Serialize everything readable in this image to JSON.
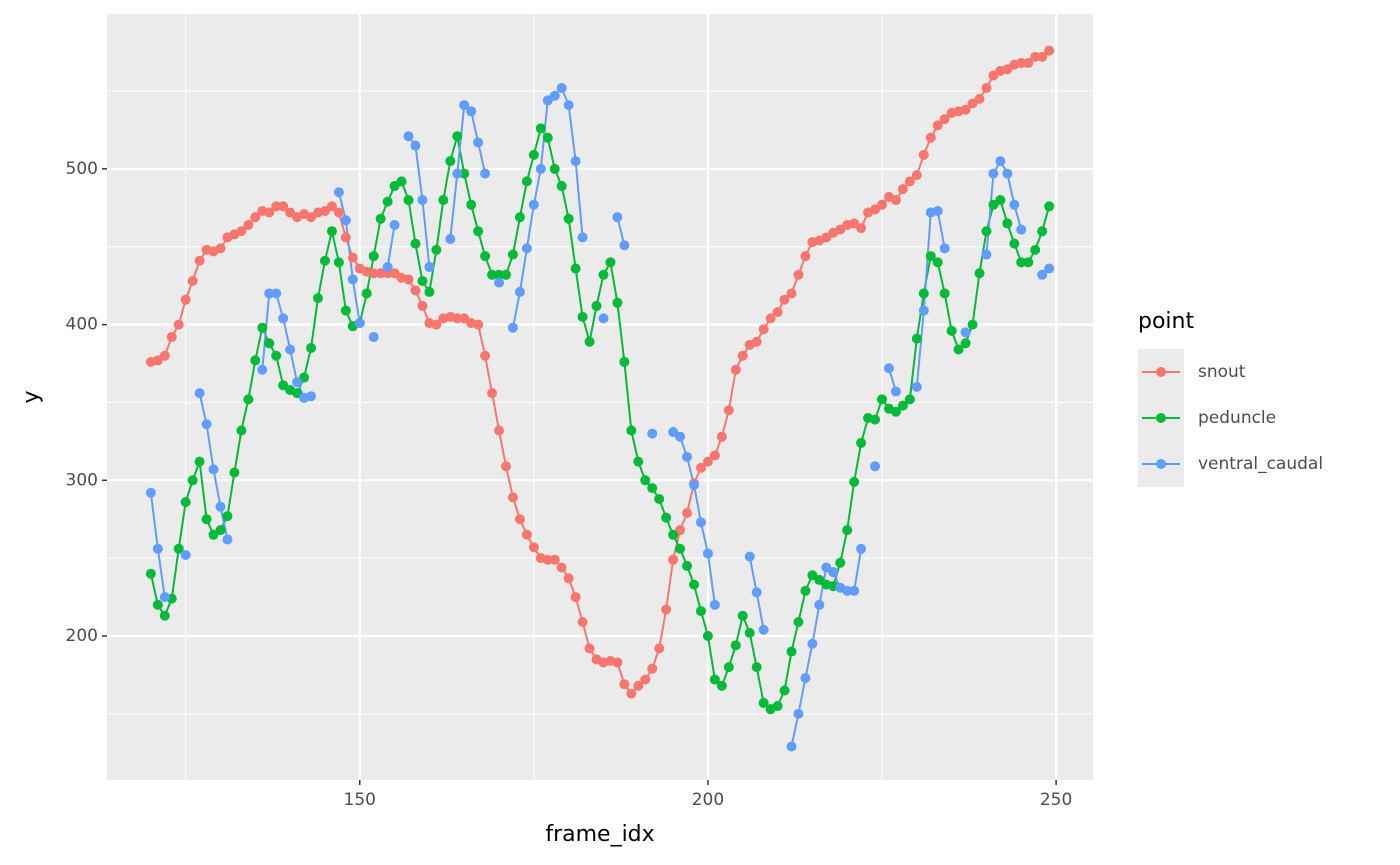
{
  "chart_data": {
    "type": "line",
    "x_label": "frame_idx",
    "y_label": "y",
    "legend_title": "point",
    "x": [
      120,
      121,
      122,
      123,
      124,
      125,
      126,
      127,
      128,
      129,
      130,
      131,
      132,
      133,
      134,
      135,
      136,
      137,
      138,
      139,
      140,
      141,
      142,
      143,
      144,
      145,
      146,
      147,
      148,
      149,
      150,
      151,
      152,
      153,
      154,
      155,
      156,
      157,
      158,
      159,
      160,
      161,
      162,
      163,
      164,
      165,
      166,
      167,
      168,
      169,
      170,
      171,
      172,
      173,
      174,
      175,
      176,
      177,
      178,
      179,
      180,
      181,
      182,
      183,
      184,
      185,
      186,
      187,
      188,
      189,
      190,
      191,
      192,
      193,
      194,
      195,
      196,
      197,
      198,
      199,
      200,
      201,
      202,
      203,
      204,
      205,
      206,
      207,
      208,
      209,
      210,
      211,
      212,
      213,
      214,
      215,
      216,
      217,
      218,
      219,
      220,
      221,
      222,
      223,
      224,
      225,
      226,
      227,
      228,
      229,
      230,
      231,
      232,
      233,
      234,
      235,
      236,
      237,
      238,
      239,
      240,
      241,
      242,
      243,
      244,
      245,
      246,
      247,
      248,
      249
    ],
    "series": [
      {
        "name": "snout",
        "color": "#F8766D",
        "values": [
          376,
          377,
          380,
          392,
          400,
          416,
          428,
          441,
          448,
          447,
          449,
          456,
          458,
          460,
          464,
          469,
          473,
          472,
          476,
          476,
          472,
          469,
          471,
          469,
          472,
          473,
          476,
          472,
          456,
          443,
          436,
          434,
          433,
          433,
          433,
          433,
          430,
          429,
          422,
          412,
          401,
          400,
          404,
          405,
          404,
          404,
          401,
          400,
          380,
          356,
          332,
          309,
          289,
          275,
          265,
          257,
          250,
          249,
          249,
          244,
          237,
          225,
          209,
          192,
          185,
          183,
          184,
          183,
          169,
          163,
          168,
          172,
          179,
          192,
          217,
          249,
          268,
          279,
          298,
          308,
          312,
          316,
          328,
          345,
          371,
          380,
          387,
          389,
          397,
          404,
          408,
          416,
          420,
          432,
          444,
          453,
          454,
          456,
          459,
          461,
          464,
          465,
          462,
          472,
          474,
          477,
          482,
          480,
          487,
          492,
          496,
          509,
          520,
          528,
          532,
          536,
          537,
          538,
          542,
          545,
          552,
          560,
          563,
          564,
          567,
          568,
          568,
          572,
          572,
          576
        ]
      },
      {
        "name": "peduncle",
        "color": "#00BA38",
        "values": [
          240,
          220,
          213,
          224,
          256,
          286,
          300,
          312,
          275,
          265,
          268,
          277,
          305,
          332,
          352,
          377,
          398,
          388,
          380,
          361,
          358,
          356,
          366,
          385,
          417,
          441,
          460,
          440,
          409,
          399,
          401,
          420,
          444,
          468,
          479,
          489,
          492,
          480,
          452,
          428,
          421,
          448,
          480,
          505,
          521,
          497,
          477,
          460,
          444,
          432,
          432,
          432,
          445,
          469,
          492,
          509,
          526,
          520,
          500,
          489,
          468,
          436,
          405,
          389,
          412,
          432,
          440,
          414,
          376,
          332,
          312,
          300,
          295,
          288,
          276,
          265,
          256,
          245,
          233,
          216,
          200,
          172,
          168,
          180,
          194,
          213,
          202,
          180,
          157,
          153,
          155,
          165,
          190,
          209,
          229,
          239,
          236,
          233,
          232,
          247,
          268,
          299,
          324,
          340,
          339,
          352,
          346,
          344,
          348,
          352,
          391,
          420,
          444,
          440,
          420,
          396,
          384,
          388,
          400,
          433,
          460,
          477,
          480,
          465,
          452,
          440,
          440,
          448,
          460,
          476
        ]
      },
      {
        "name": "ventral_caudal",
        "color": "#619CFF",
        "values": [
          292,
          256,
          225,
          null,
          null,
          252,
          null,
          356,
          336,
          307,
          283,
          262,
          null,
          null,
          null,
          null,
          371,
          420,
          420,
          404,
          384,
          363,
          353,
          354,
          null,
          null,
          null,
          485,
          467,
          429,
          401,
          null,
          392,
          null,
          437,
          464,
          null,
          521,
          515,
          480,
          437,
          null,
          null,
          455,
          497,
          541,
          537,
          517,
          497,
          null,
          427,
          null,
          398,
          421,
          449,
          477,
          500,
          544,
          547,
          552,
          541,
          505,
          456,
          null,
          null,
          404,
          null,
          469,
          451,
          null,
          null,
          null,
          330,
          null,
          null,
          331,
          328,
          315,
          297,
          273,
          253,
          220,
          null,
          null,
          null,
          null,
          251,
          228,
          204,
          null,
          null,
          null,
          129,
          150,
          173,
          195,
          220,
          244,
          241,
          231,
          229,
          229,
          256,
          null,
          309,
          null,
          372,
          357,
          null,
          null,
          360,
          409,
          472,
          473,
          449,
          null,
          null,
          395,
          null,
          null,
          445,
          497,
          505,
          497,
          477,
          461,
          null,
          null,
          432,
          436
        ]
      }
    ],
    "xlim": [
      113.7,
      255.3
    ],
    "ylim": [
      107.5,
      599.5
    ],
    "xticks": [
      150,
      200,
      250
    ],
    "yticks": [
      200,
      300,
      400,
      500
    ],
    "grid": true,
    "legend_position": "right"
  }
}
